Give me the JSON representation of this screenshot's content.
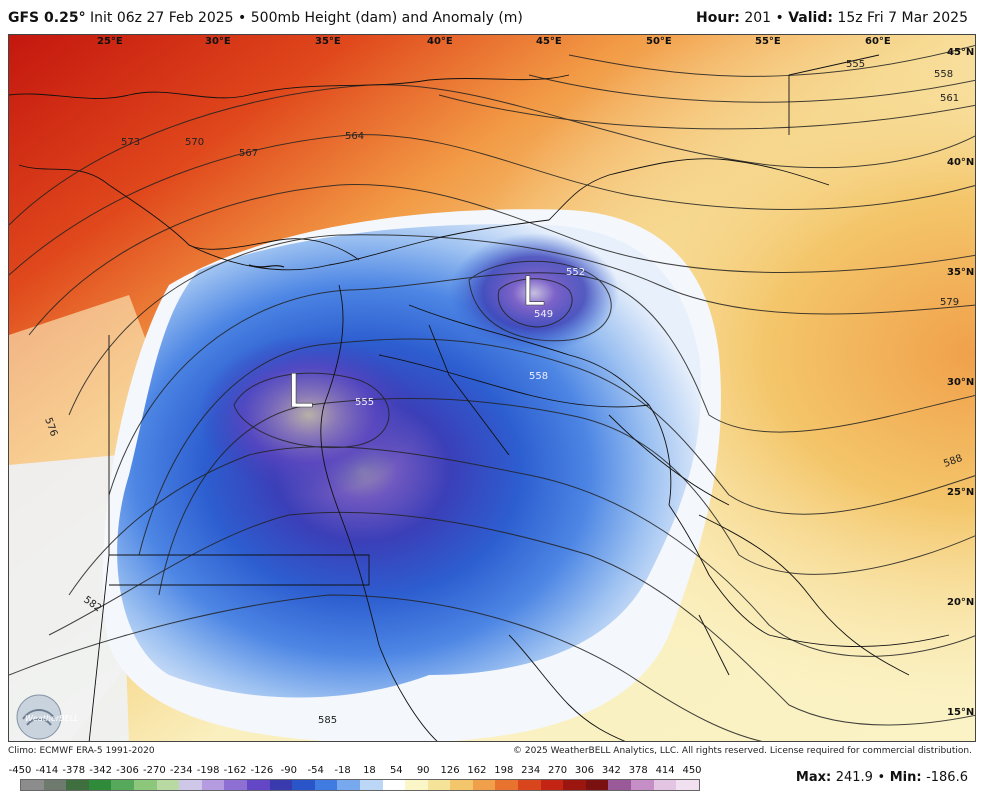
{
  "header": {
    "model": "GFS 0.25",
    "degree_mark": "°",
    "init": "Init 06z 27 Feb 2025",
    "bullet": "•",
    "product": "500mb Height (dam) and Anomaly (m)",
    "hour_label": "Hour:",
    "hour_value": "201",
    "valid_label": "Valid:",
    "valid_value": "15z Fri 7 Mar 2025"
  },
  "map": {
    "lon_labels": [
      "25°E",
      "30°E",
      "35°E",
      "40°E",
      "45°E",
      "50°E",
      "55°E",
      "60°E"
    ],
    "lat_labels": [
      "45°N",
      "40°N",
      "35°N",
      "30°N",
      "25°N",
      "20°N",
      "15°N"
    ],
    "low_symbol": "L",
    "contour_labels": [
      "555",
      "558",
      "561",
      "564",
      "567",
      "570",
      "573",
      "576",
      "579",
      "582",
      "585",
      "588",
      "552",
      "549",
      "555",
      "558"
    ],
    "logo_text": "WeatherBELL"
  },
  "footer": {
    "climo": "Climo: ECMWF ERA-5 1991-2020",
    "copyright": "© 2025 WeatherBELL Analytics, LLC. All rights reserved. License required for commercial distribution."
  },
  "colorbar": {
    "ticks": [
      "-450",
      "-414",
      "-378",
      "-342",
      "-306",
      "-270",
      "-234",
      "-198",
      "-162",
      "-126",
      "-90",
      "-54",
      "-18",
      "18",
      "54",
      "90",
      "126",
      "162",
      "198",
      "234",
      "270",
      "306",
      "342",
      "378",
      "414",
      "450"
    ],
    "colors": [
      "#8c8c8c",
      "#6e7a6e",
      "#3f6f3f",
      "#2f8a3a",
      "#56a85a",
      "#8cc77c",
      "#b9d9a3",
      "#cfc7e8",
      "#b59be0",
      "#8e6fd4",
      "#6447c6",
      "#3a3aaf",
      "#2a55c8",
      "#3f7be0",
      "#78a9ee",
      "#bcd6f6",
      "#ffffff",
      "#fbf6c8",
      "#f6e39a",
      "#f4c66b",
      "#f0a04a",
      "#e8732e",
      "#d9461e",
      "#c42414",
      "#9c1610",
      "#7a1010",
      "#9a5a9a",
      "#c68ec6",
      "#e3c4e3",
      "#f0e0f0"
    ]
  },
  "stats": {
    "max_label": "Max:",
    "max_value": "241.9",
    "sep": "•",
    "min_label": "Min:",
    "min_value": "-186.6"
  }
}
